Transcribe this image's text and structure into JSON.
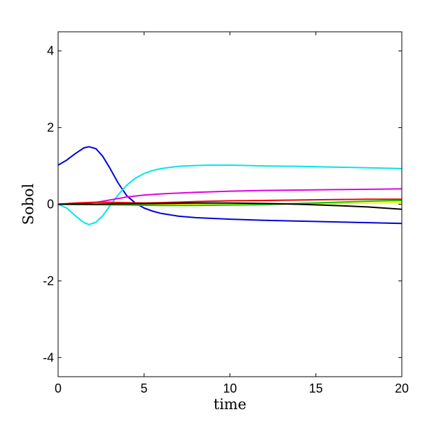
{
  "chart_data": {
    "type": "line",
    "xlabel": "time",
    "ylabel": "Sobol",
    "xlim": [
      0,
      20
    ],
    "ylim": [
      -4.5,
      4.5
    ],
    "xticks": [
      0,
      5,
      10,
      15,
      20
    ],
    "xtick_labels": [
      "0",
      "5",
      "10",
      "15",
      "20"
    ],
    "yticks": [
      -4,
      -2,
      0,
      2,
      4
    ],
    "ytick_labels": [
      "-4",
      "-2",
      "0",
      "2",
      "4"
    ],
    "grid": false,
    "series": [
      {
        "color": "#0000dd",
        "x": [
          0,
          0.5,
          1,
          1.5,
          1.8,
          2.2,
          2.6,
          3,
          3.5,
          4,
          4.5,
          5,
          5.5,
          6,
          7,
          8,
          9,
          10,
          12,
          14,
          16,
          18,
          20
        ],
        "y": [
          1.02,
          1.15,
          1.32,
          1.47,
          1.5,
          1.45,
          1.25,
          0.95,
          0.55,
          0.22,
          0.03,
          -0.1,
          -0.18,
          -0.24,
          -0.31,
          -0.35,
          -0.37,
          -0.39,
          -0.42,
          -0.44,
          -0.46,
          -0.48,
          -0.5
        ]
      },
      {
        "color": "#00e5e5",
        "x": [
          0,
          0.5,
          1,
          1.5,
          1.8,
          2.2,
          2.6,
          3,
          3.5,
          4,
          4.5,
          5,
          5.5,
          6,
          7,
          8,
          9,
          10,
          12,
          14,
          16,
          18,
          20
        ],
        "y": [
          0,
          -0.1,
          -0.3,
          -0.48,
          -0.53,
          -0.47,
          -0.3,
          -0.05,
          0.25,
          0.5,
          0.68,
          0.8,
          0.88,
          0.93,
          0.99,
          1.01,
          1.02,
          1.02,
          1.0,
          0.99,
          0.97,
          0.95,
          0.93
        ]
      },
      {
        "color": "#e000e0",
        "x": [
          0,
          1,
          2,
          2.5,
          3,
          3.5,
          4,
          5,
          6,
          7,
          8,
          10,
          12,
          14,
          16,
          18,
          20
        ],
        "y": [
          0,
          0.01,
          0.04,
          0.07,
          0.11,
          0.15,
          0.19,
          0.24,
          0.27,
          0.29,
          0.31,
          0.34,
          0.36,
          0.37,
          0.38,
          0.39,
          0.4
        ]
      },
      {
        "color": "#ee0000",
        "x": [
          0,
          1,
          2,
          3,
          4,
          5,
          6,
          8,
          10,
          12,
          14,
          16,
          18,
          20
        ],
        "y": [
          0,
          0.03,
          0.05,
          0.05,
          0.04,
          0.03,
          0.04,
          0.07,
          0.09,
          0.1,
          0.11,
          0.12,
          0.13,
          0.13
        ]
      },
      {
        "color": "#ffee00",
        "x": [
          0,
          2,
          4,
          6,
          8,
          10,
          12,
          14,
          16,
          18,
          20
        ],
        "y": [
          0,
          0.0,
          -0.01,
          -0.01,
          -0.01,
          -0.01,
          0.0,
          0.01,
          0.02,
          0.03,
          0.04
        ]
      },
      {
        "color": "#00cc00",
        "x": [
          0,
          2,
          4,
          6,
          8,
          10,
          12,
          14,
          16,
          18,
          20
        ],
        "y": [
          0,
          -0.01,
          -0.02,
          -0.03,
          -0.03,
          -0.02,
          -0.01,
          0.02,
          0.05,
          0.08,
          0.1
        ]
      },
      {
        "color": "#000000",
        "x": [
          0,
          2,
          4,
          6,
          8,
          10,
          12,
          14,
          16,
          18,
          20
        ],
        "y": [
          0,
          0.0,
          0.01,
          0.02,
          0.03,
          0.03,
          0.02,
          0.0,
          -0.03,
          -0.07,
          -0.13
        ]
      }
    ]
  }
}
